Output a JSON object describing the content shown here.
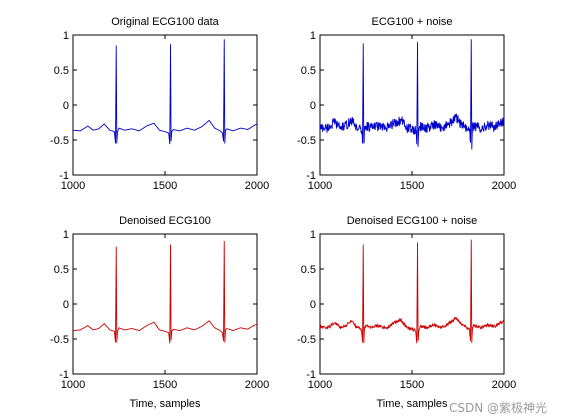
{
  "watermark": "CSDN @紫极神光",
  "chart_data": [
    {
      "type": "line",
      "title": "Original ECG100 data",
      "xlabel": "",
      "ylabel": "",
      "xlim": [
        1000,
        2000
      ],
      "ylim": [
        -1,
        1
      ],
      "xticks": [
        1000,
        1500,
        2000
      ],
      "yticks": [
        1,
        0.5,
        0,
        -0.5,
        -1
      ],
      "ytick_labels": [
        "1",
        "0.5",
        "0",
        "-0.5",
        "-1"
      ],
      "grid": false,
      "color": "#0000cc",
      "noise": 0,
      "series": [
        {
          "x": [
            1000,
            1040,
            1080,
            1110,
            1140,
            1170,
            1200,
            1225,
            1231,
            1235,
            1238,
            1242,
            1250,
            1280,
            1320,
            1360,
            1400,
            1440,
            1470,
            1500,
            1520,
            1526,
            1530,
            1533,
            1537,
            1545,
            1580,
            1620,
            1660,
            1700,
            1740,
            1770,
            1800,
            1812,
            1818,
            1822,
            1825,
            1829,
            1837,
            1870,
            1910,
            1950,
            1980,
            2000
          ],
          "y": [
            -0.36,
            -0.37,
            -0.3,
            -0.36,
            -0.34,
            -0.27,
            -0.36,
            -0.38,
            -0.55,
            0.85,
            -0.55,
            -0.38,
            -0.33,
            -0.36,
            -0.34,
            -0.37,
            -0.3,
            -0.26,
            -0.36,
            -0.38,
            -0.4,
            -0.56,
            0.87,
            -0.52,
            -0.38,
            -0.35,
            -0.37,
            -0.33,
            -0.36,
            -0.31,
            -0.22,
            -0.33,
            -0.37,
            -0.4,
            -0.52,
            0.94,
            -0.55,
            -0.36,
            -0.34,
            -0.37,
            -0.33,
            -0.35,
            -0.3,
            -0.27
          ]
        }
      ]
    },
    {
      "type": "line",
      "title": "ECG100 +  noise",
      "xlabel": "",
      "ylabel": "",
      "xlim": [
        1000,
        2000
      ],
      "ylim": [
        -1,
        1
      ],
      "xticks": [
        1000,
        1500,
        2000
      ],
      "yticks": [
        1,
        0.5,
        0,
        -0.5,
        -1
      ],
      "ytick_labels": [
        "1",
        "0.5",
        "0",
        "-0.5",
        "-1"
      ],
      "grid": false,
      "color": "#0000cc",
      "noise": 0.07,
      "series": [
        {
          "x": [
            1000,
            1040,
            1080,
            1110,
            1140,
            1170,
            1200,
            1225,
            1231,
            1235,
            1238,
            1242,
            1250,
            1280,
            1320,
            1360,
            1400,
            1440,
            1470,
            1500,
            1520,
            1526,
            1530,
            1533,
            1537,
            1545,
            1580,
            1620,
            1660,
            1700,
            1740,
            1770,
            1800,
            1812,
            1818,
            1822,
            1825,
            1829,
            1837,
            1870,
            1910,
            1950,
            1980,
            2000
          ],
          "y": [
            -0.32,
            -0.33,
            -0.25,
            -0.32,
            -0.3,
            -0.22,
            -0.32,
            -0.35,
            -0.55,
            0.88,
            -0.58,
            -0.34,
            -0.3,
            -0.32,
            -0.3,
            -0.34,
            -0.26,
            -0.22,
            -0.32,
            -0.35,
            -0.37,
            -0.56,
            0.9,
            -0.55,
            -0.35,
            -0.31,
            -0.33,
            -0.29,
            -0.32,
            -0.27,
            -0.18,
            -0.29,
            -0.33,
            -0.36,
            -0.54,
            0.94,
            -0.58,
            -0.32,
            -0.3,
            -0.33,
            -0.29,
            -0.31,
            -0.26,
            -0.22
          ]
        }
      ]
    },
    {
      "type": "line",
      "title": "Denoised ECG100",
      "xlabel": "Time, samples",
      "ylabel": "",
      "xlim": [
        1000,
        2000
      ],
      "ylim": [
        -1,
        1
      ],
      "xticks": [
        1000,
        1500,
        2000
      ],
      "yticks": [
        1,
        0.5,
        0,
        -0.5,
        -1
      ],
      "ytick_labels": [
        "1",
        "0.5",
        "0",
        "-0.5",
        "-1"
      ],
      "grid": false,
      "color": "#cc0000",
      "noise": 0,
      "series": [
        {
          "x": [
            1000,
            1040,
            1080,
            1110,
            1140,
            1170,
            1200,
            1225,
            1231,
            1235,
            1238,
            1242,
            1250,
            1280,
            1320,
            1360,
            1400,
            1440,
            1470,
            1500,
            1520,
            1526,
            1530,
            1533,
            1537,
            1545,
            1580,
            1620,
            1660,
            1700,
            1740,
            1770,
            1800,
            1812,
            1818,
            1822,
            1825,
            1829,
            1837,
            1870,
            1910,
            1950,
            1980,
            2000
          ],
          "y": [
            -0.38,
            -0.37,
            -0.31,
            -0.37,
            -0.35,
            -0.28,
            -0.37,
            -0.39,
            -0.55,
            0.82,
            -0.55,
            -0.39,
            -0.34,
            -0.37,
            -0.35,
            -0.38,
            -0.31,
            -0.26,
            -0.37,
            -0.39,
            -0.41,
            -0.56,
            0.85,
            -0.52,
            -0.39,
            -0.36,
            -0.38,
            -0.34,
            -0.37,
            -0.32,
            -0.24,
            -0.34,
            -0.38,
            -0.41,
            -0.53,
            0.9,
            -0.55,
            -0.37,
            -0.35,
            -0.38,
            -0.34,
            -0.36,
            -0.31,
            -0.29
          ]
        }
      ]
    },
    {
      "type": "line",
      "title": "Denoised ECG100 + noise",
      "xlabel": "Time, samples",
      "ylabel": "",
      "xlim": [
        1000,
        2000
      ],
      "ylim": [
        -1,
        1
      ],
      "xticks": [
        1000,
        1500,
        2000
      ],
      "yticks": [
        1,
        0.5,
        0,
        -0.5,
        -1
      ],
      "ytick_labels": [
        "1",
        "0.5",
        "0",
        "-0.5",
        "-1"
      ],
      "grid": false,
      "color": "#cc0000",
      "noise": 0.02,
      "series": [
        {
          "x": [
            1000,
            1040,
            1080,
            1110,
            1140,
            1170,
            1200,
            1225,
            1231,
            1235,
            1238,
            1242,
            1250,
            1280,
            1320,
            1360,
            1400,
            1440,
            1470,
            1500,
            1520,
            1526,
            1530,
            1533,
            1537,
            1545,
            1580,
            1620,
            1660,
            1700,
            1740,
            1770,
            1800,
            1812,
            1818,
            1822,
            1825,
            1829,
            1837,
            1870,
            1910,
            1950,
            1980,
            2000
          ],
          "y": [
            -0.33,
            -0.34,
            -0.27,
            -0.33,
            -0.31,
            -0.24,
            -0.33,
            -0.36,
            -0.55,
            0.85,
            -0.55,
            -0.35,
            -0.31,
            -0.33,
            -0.31,
            -0.35,
            -0.27,
            -0.23,
            -0.33,
            -0.36,
            -0.38,
            -0.56,
            0.88,
            -0.54,
            -0.36,
            -0.32,
            -0.34,
            -0.3,
            -0.33,
            -0.28,
            -0.2,
            -0.3,
            -0.34,
            -0.37,
            -0.53,
            0.92,
            -0.55,
            -0.33,
            -0.31,
            -0.34,
            -0.3,
            -0.32,
            -0.27,
            -0.25
          ]
        }
      ]
    }
  ]
}
